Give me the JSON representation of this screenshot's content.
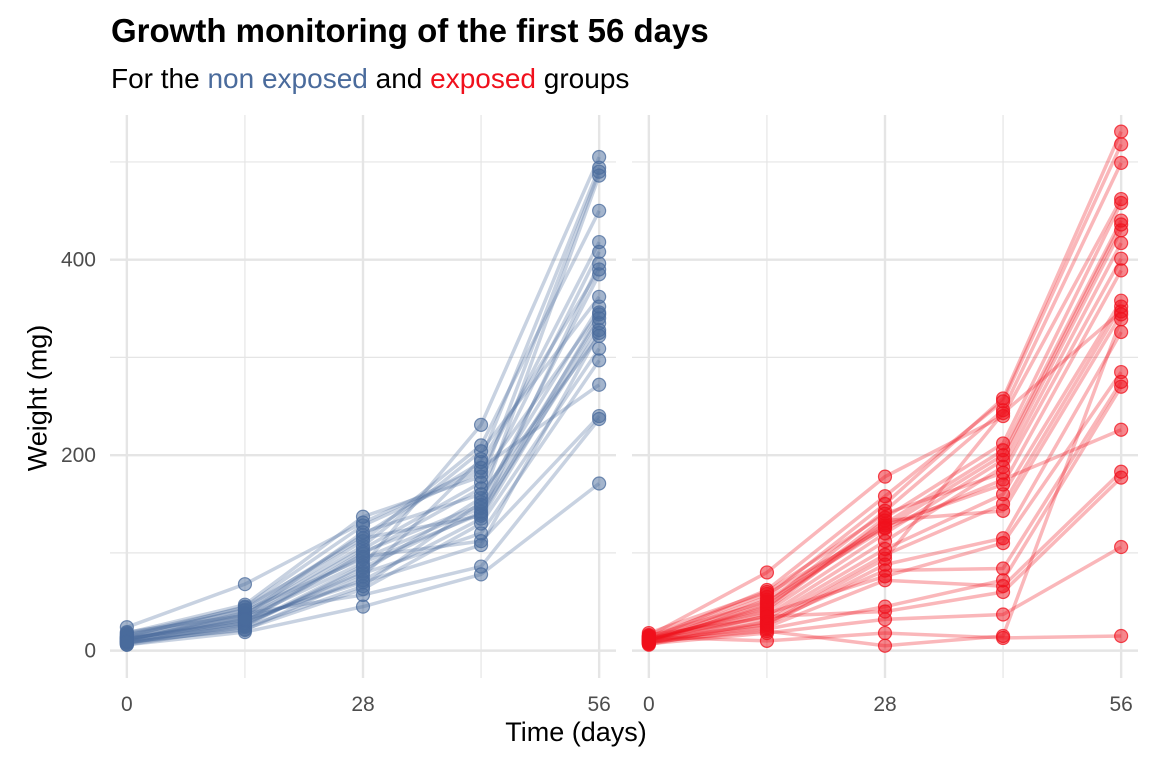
{
  "title": "Growth monitoring of the first 56 days",
  "subtitle": {
    "prefix": "For the ",
    "group1": "non exposed",
    "middle": " and ",
    "group2": "exposed",
    "suffix": " groups"
  },
  "colors": {
    "non_exposed": "#4a6b9c",
    "exposed": "#f0101c",
    "grid": "#e5e5e5",
    "tick_text": "#4d4d4d"
  },
  "chart_data": {
    "type": "line",
    "xlabel": "Time (days)",
    "ylabel": "Weight (mg)",
    "x": [
      0,
      14,
      28,
      42,
      56
    ],
    "x_ticks": [
      0,
      28,
      56
    ],
    "y_ticks": [
      0,
      200,
      400
    ],
    "xlim": [
      -2,
      58
    ],
    "ylim": [
      -28,
      548
    ],
    "grid": true,
    "legend": "none",
    "panels": [
      {
        "name": "non exposed",
        "color": "#4a6b9c",
        "series": [
          {
            "values": [
              8,
              26,
              87,
              231,
              505
            ]
          },
          {
            "values": [
              9,
              21,
              76,
              196,
              494
            ]
          },
          {
            "values": [
              12,
              35,
              104,
              172,
              490
            ]
          },
          {
            "values": [
              6,
              24,
              66,
              152,
              486
            ]
          },
          {
            "values": [
              10,
              39,
              112,
              210,
              450
            ]
          },
          {
            "values": [
              14,
              45,
              128,
              183,
              418
            ]
          },
          {
            "values": [
              7,
              29,
              99,
              166,
              408
            ]
          },
          {
            "values": [
              11,
              33,
              90,
              140,
              396
            ]
          },
          {
            "values": [
              15,
              42,
              118,
              193,
              390
            ]
          },
          {
            "values": [
              13,
              37,
              107,
              204,
              362
            ]
          },
          {
            "values": [
              9,
              27,
              81,
              156,
              352
            ]
          },
          {
            "values": [
              18,
              47,
              137,
              178,
              346
            ]
          },
          {
            "values": [
              16,
              41,
              94,
              146,
              340
            ]
          },
          {
            "values": [
              12,
              31,
              72,
              135,
              335
            ]
          },
          {
            "values": [
              10,
              25,
              85,
              142,
              328
            ]
          },
          {
            "values": [
              19,
              36,
              121,
              160,
              322
            ]
          },
          {
            "values": [
              8,
              22,
              63,
              130,
              309
            ]
          },
          {
            "values": [
              13,
              28,
              79,
              120,
              297
            ]
          },
          {
            "values": [
              24,
              68,
              131,
              187,
              272
            ]
          },
          {
            "values": [
              11,
              34,
              96,
              112,
              240
            ]
          },
          {
            "values": [
              14,
              38,
              57,
              86,
              237
            ]
          },
          {
            "values": [
              6,
              19,
              45,
              78,
              171
            ]
          },
          {
            "values": [
              12,
              30,
              101,
              149,
              385
            ]
          },
          {
            "values": [
              17,
              44,
              115,
              138,
              344
            ]
          },
          {
            "values": [
              9,
              32,
              70,
              108,
              325
            ]
          }
        ]
      },
      {
        "name": "exposed",
        "color": "#f0101c",
        "series": [
          {
            "values": [
              10,
              55,
              150,
              258,
              531
            ]
          },
          {
            "values": [
              12,
              62,
              158,
              255,
              518
            ]
          },
          {
            "values": [
              8,
              48,
              143,
              246,
              499
            ]
          },
          {
            "values": [
              15,
              80,
              178,
              240,
              462
            ]
          },
          {
            "values": [
              11,
              44,
              136,
              212,
              458
            ]
          },
          {
            "values": [
              9,
              52,
              130,
              205,
              440
            ]
          },
          {
            "values": [
              14,
              58,
              126,
              200,
              436
            ]
          },
          {
            "values": [
              13,
              40,
              120,
              195,
              430
            ]
          },
          {
            "values": [
              7,
              36,
              112,
              188,
              417
            ]
          },
          {
            "values": [
              18,
              60,
              140,
              182,
              401
            ]
          },
          {
            "values": [
              10,
              46,
              128,
              170,
              389
            ]
          },
          {
            "values": [
              16,
              33,
              104,
              160,
              358
            ]
          },
          {
            "values": [
              6,
              30,
              98,
              150,
              352
            ]
          },
          {
            "values": [
              12,
              42,
              133,
              143,
              344
            ]
          },
          {
            "values": [
              9,
              26,
              88,
              115,
              326
            ]
          },
          {
            "values": [
              11,
              38,
              76,
              110,
              285
            ]
          },
          {
            "values": [
              13,
              29,
              82,
              84,
              275
            ]
          },
          {
            "values": [
              8,
              22,
              45,
              72,
              270
            ]
          },
          {
            "values": [
              15,
              50,
              125,
              175,
              226
            ]
          },
          {
            "values": [
              10,
              24,
              72,
              66,
              183
            ]
          },
          {
            "values": [
              12,
              35,
              40,
              60,
              177
            ]
          },
          {
            "values": [
              7,
              18,
              32,
              37,
              106
            ]
          },
          {
            "values": [
              14,
              10,
              18,
              13,
              15
            ]
          },
          {
            "values": [
              9,
              20,
              5,
              15,
              339
            ]
          },
          {
            "values": [
              11,
              27,
              94,
              243,
              347
            ]
          }
        ]
      }
    ]
  }
}
